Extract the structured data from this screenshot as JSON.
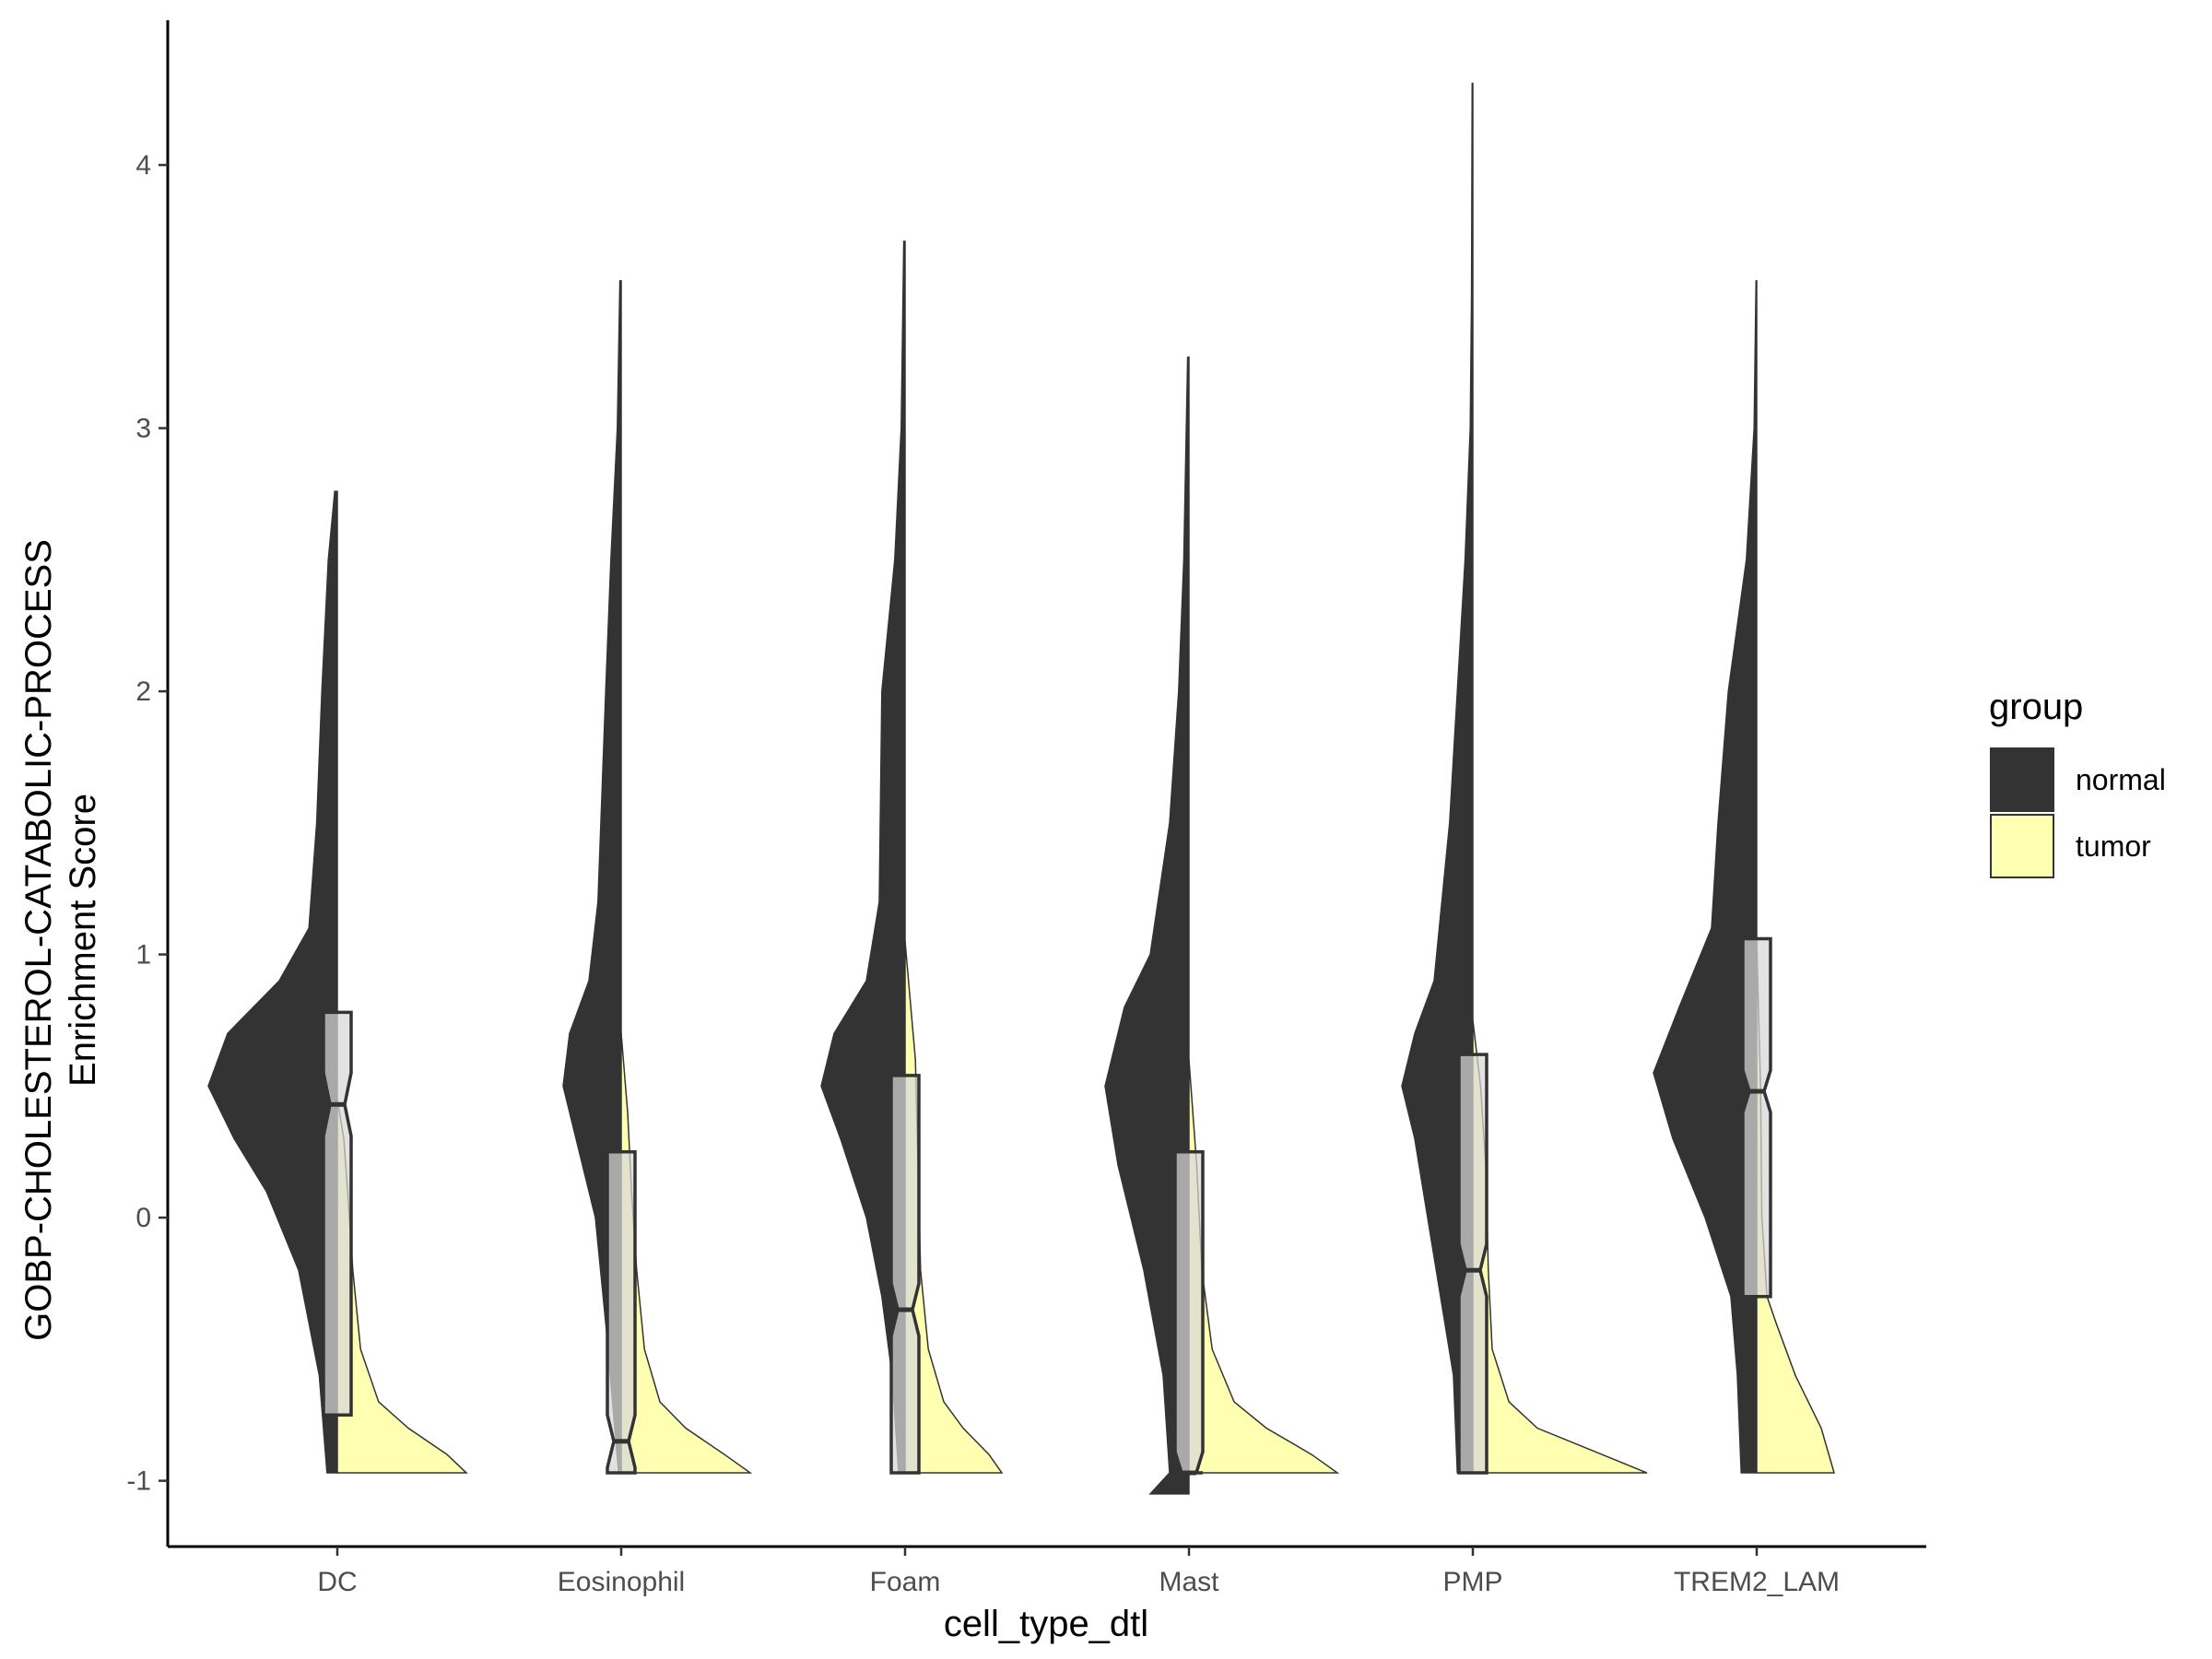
{
  "chart_data": {
    "type": "violin",
    "title": "",
    "xlabel": "cell_type_dtl",
    "ylabel_lines": [
      "GOBP-CHOLESTEROL-CATABOLIC-PROCESS",
      "Enrichment Score"
    ],
    "ylim": [
      -1.25,
      4.55
    ],
    "yticks": [
      -1,
      0,
      1,
      2,
      3,
      4
    ],
    "ytick_labels": [
      "-1",
      "0",
      "1",
      "2",
      "3",
      "4"
    ],
    "categories": [
      "DC",
      "Eosinophil",
      "Foam",
      "Mast",
      "PMP",
      "TREM2_LAM"
    ],
    "grid": false,
    "legend": {
      "title": "group",
      "position": "right",
      "entries": [
        {
          "label": "normal",
          "color": "#333333"
        },
        {
          "label": "tumor",
          "color": "#FFFFB2"
        }
      ]
    },
    "series": [
      {
        "name": "normal",
        "color": "#333333",
        "side": "left",
        "violins": [
          {
            "category": "DC",
            "max": 2.76,
            "profile": [
              [
                -0.97,
                0.08
              ],
              [
                -0.6,
                0.14
              ],
              [
                -0.2,
                0.3
              ],
              [
                0.1,
                0.55
              ],
              [
                0.3,
                0.8
              ],
              [
                0.5,
                1.0
              ],
              [
                0.7,
                0.85
              ],
              [
                0.9,
                0.45
              ],
              [
                1.1,
                0.22
              ],
              [
                1.5,
                0.16
              ],
              [
                2.0,
                0.12
              ],
              [
                2.5,
                0.07
              ],
              [
                2.76,
                0.02
              ]
            ]
          },
          {
            "category": "Eosinophil",
            "max": 3.56,
            "profile": [
              [
                -0.97,
                0.02
              ],
              [
                -0.8,
                0.05
              ],
              [
                -0.4,
                0.12
              ],
              [
                0.0,
                0.2
              ],
              [
                0.3,
                0.35
              ],
              [
                0.5,
                0.45
              ],
              [
                0.7,
                0.4
              ],
              [
                0.9,
                0.25
              ],
              [
                1.2,
                0.18
              ],
              [
                2.0,
                0.12
              ],
              [
                2.5,
                0.08
              ],
              [
                3.0,
                0.03
              ],
              [
                3.56,
                0.01
              ]
            ]
          },
          {
            "category": "Foam",
            "max": 3.71,
            "profile": [
              [
                -0.97,
                0.05
              ],
              [
                -0.6,
                0.1
              ],
              [
                -0.3,
                0.18
              ],
              [
                0.0,
                0.3
              ],
              [
                0.3,
                0.5
              ],
              [
                0.5,
                0.65
              ],
              [
                0.7,
                0.55
              ],
              [
                0.9,
                0.3
              ],
              [
                1.2,
                0.2
              ],
              [
                2.0,
                0.18
              ],
              [
                2.5,
                0.08
              ],
              [
                3.0,
                0.03
              ],
              [
                3.71,
                0.01
              ]
            ]
          },
          {
            "category": "Mast",
            "max": 3.27,
            "profile": [
              [
                -1.05,
                0.3
              ],
              [
                -0.97,
                0.15
              ],
              [
                -0.6,
                0.2
              ],
              [
                -0.2,
                0.35
              ],
              [
                0.2,
                0.55
              ],
              [
                0.5,
                0.65
              ],
              [
                0.8,
                0.5
              ],
              [
                1.0,
                0.3
              ],
              [
                1.5,
                0.15
              ],
              [
                2.0,
                0.08
              ],
              [
                2.5,
                0.04
              ],
              [
                3.27,
                0.01
              ]
            ]
          },
          {
            "category": "PMP",
            "max": 4.31,
            "profile": [
              [
                -0.97,
                0.12
              ],
              [
                -0.6,
                0.15
              ],
              [
                -0.3,
                0.25
              ],
              [
                0.0,
                0.35
              ],
              [
                0.3,
                0.45
              ],
              [
                0.5,
                0.55
              ],
              [
                0.7,
                0.45
              ],
              [
                0.9,
                0.3
              ],
              [
                1.5,
                0.18
              ],
              [
                2.0,
                0.12
              ],
              [
                2.5,
                0.06
              ],
              [
                3.0,
                0.02
              ],
              [
                3.5,
                0.01
              ],
              [
                4.31,
                0.005
              ]
            ]
          },
          {
            "category": "TREM2_LAM",
            "max": 3.56,
            "profile": [
              [
                -0.97,
                0.12
              ],
              [
                -0.6,
                0.15
              ],
              [
                -0.3,
                0.2
              ],
              [
                0.0,
                0.4
              ],
              [
                0.3,
                0.65
              ],
              [
                0.55,
                0.8
              ],
              [
                0.8,
                0.6
              ],
              [
                1.1,
                0.35
              ],
              [
                1.5,
                0.3
              ],
              [
                2.0,
                0.22
              ],
              [
                2.5,
                0.08
              ],
              [
                3.0,
                0.02
              ],
              [
                3.56,
                0.005
              ]
            ]
          }
        ],
        "boxes": [
          {
            "category": "DC",
            "q1": -0.75,
            "median": 0.43,
            "q3": 0.78,
            "notch": 0.12
          },
          {
            "category": "Eosinophil",
            "q1": -0.97,
            "median": -0.85,
            "q3": 0.25,
            "notch": 0.1
          },
          {
            "category": "Foam",
            "q1": -0.97,
            "median": -0.35,
            "q3": 0.54,
            "notch": 0.1
          },
          {
            "category": "Mast",
            "q1": -0.97,
            "median": -0.97,
            "q3": 0.25,
            "notch": 0.08
          },
          {
            "category": "PMP",
            "q1": -0.97,
            "median": -0.2,
            "q3": 0.62,
            "notch": 0.1
          },
          {
            "category": "TREM2_LAM",
            "q1": -0.3,
            "median": 0.48,
            "q3": 1.06,
            "notch": 0.08
          }
        ]
      },
      {
        "name": "tumor",
        "color": "#FFFFB2",
        "side": "right",
        "violins": [
          {
            "category": "DC",
            "max": 0.45,
            "profile": [
              [
                -0.97,
                1.0
              ],
              [
                -0.9,
                0.85
              ],
              [
                -0.8,
                0.55
              ],
              [
                -0.7,
                0.32
              ],
              [
                -0.5,
                0.18
              ],
              [
                -0.2,
                0.12
              ],
              [
                0.1,
                0.08
              ],
              [
                0.3,
                0.05
              ],
              [
                0.45,
                0.0
              ]
            ]
          },
          {
            "category": "Eosinophil",
            "max": 0.7,
            "profile": [
              [
                -0.97,
                1.0
              ],
              [
                -0.9,
                0.8
              ],
              [
                -0.8,
                0.5
              ],
              [
                -0.7,
                0.3
              ],
              [
                -0.5,
                0.18
              ],
              [
                -0.2,
                0.12
              ],
              [
                0.1,
                0.08
              ],
              [
                0.4,
                0.05
              ],
              [
                0.7,
                0.0
              ]
            ]
          },
          {
            "category": "Foam",
            "max": 1.05,
            "profile": [
              [
                -0.97,
                0.75
              ],
              [
                -0.9,
                0.65
              ],
              [
                -0.8,
                0.45
              ],
              [
                -0.7,
                0.3
              ],
              [
                -0.5,
                0.18
              ],
              [
                -0.2,
                0.12
              ],
              [
                0.2,
                0.1
              ],
              [
                0.6,
                0.08
              ],
              [
                1.05,
                0.0
              ]
            ]
          },
          {
            "category": "Mast",
            "max": 0.6,
            "profile": [
              [
                -0.97,
                1.15
              ],
              [
                -0.9,
                0.95
              ],
              [
                -0.8,
                0.6
              ],
              [
                -0.7,
                0.35
              ],
              [
                -0.5,
                0.18
              ],
              [
                -0.2,
                0.1
              ],
              [
                0.2,
                0.06
              ],
              [
                0.6,
                0.0
              ]
            ]
          },
          {
            "category": "PMP",
            "max": 0.75,
            "profile": [
              [
                -0.97,
                1.35
              ],
              [
                -0.9,
                1.0
              ],
              [
                -0.8,
                0.5
              ],
              [
                -0.7,
                0.28
              ],
              [
                -0.5,
                0.15
              ],
              [
                -0.2,
                0.12
              ],
              [
                0.2,
                0.1
              ],
              [
                0.5,
                0.06
              ],
              [
                0.75,
                0.0
              ]
            ]
          },
          {
            "category": "TREM2_LAM",
            "max": 1.05,
            "profile": [
              [
                -0.97,
                0.6
              ],
              [
                -0.8,
                0.5
              ],
              [
                -0.6,
                0.3
              ],
              [
                -0.4,
                0.15
              ],
              [
                -0.3,
                0.08
              ],
              [
                0.0,
                0.04
              ],
              [
                0.5,
                0.03
              ],
              [
                1.05,
                0.0
              ]
            ]
          }
        ]
      }
    ]
  }
}
